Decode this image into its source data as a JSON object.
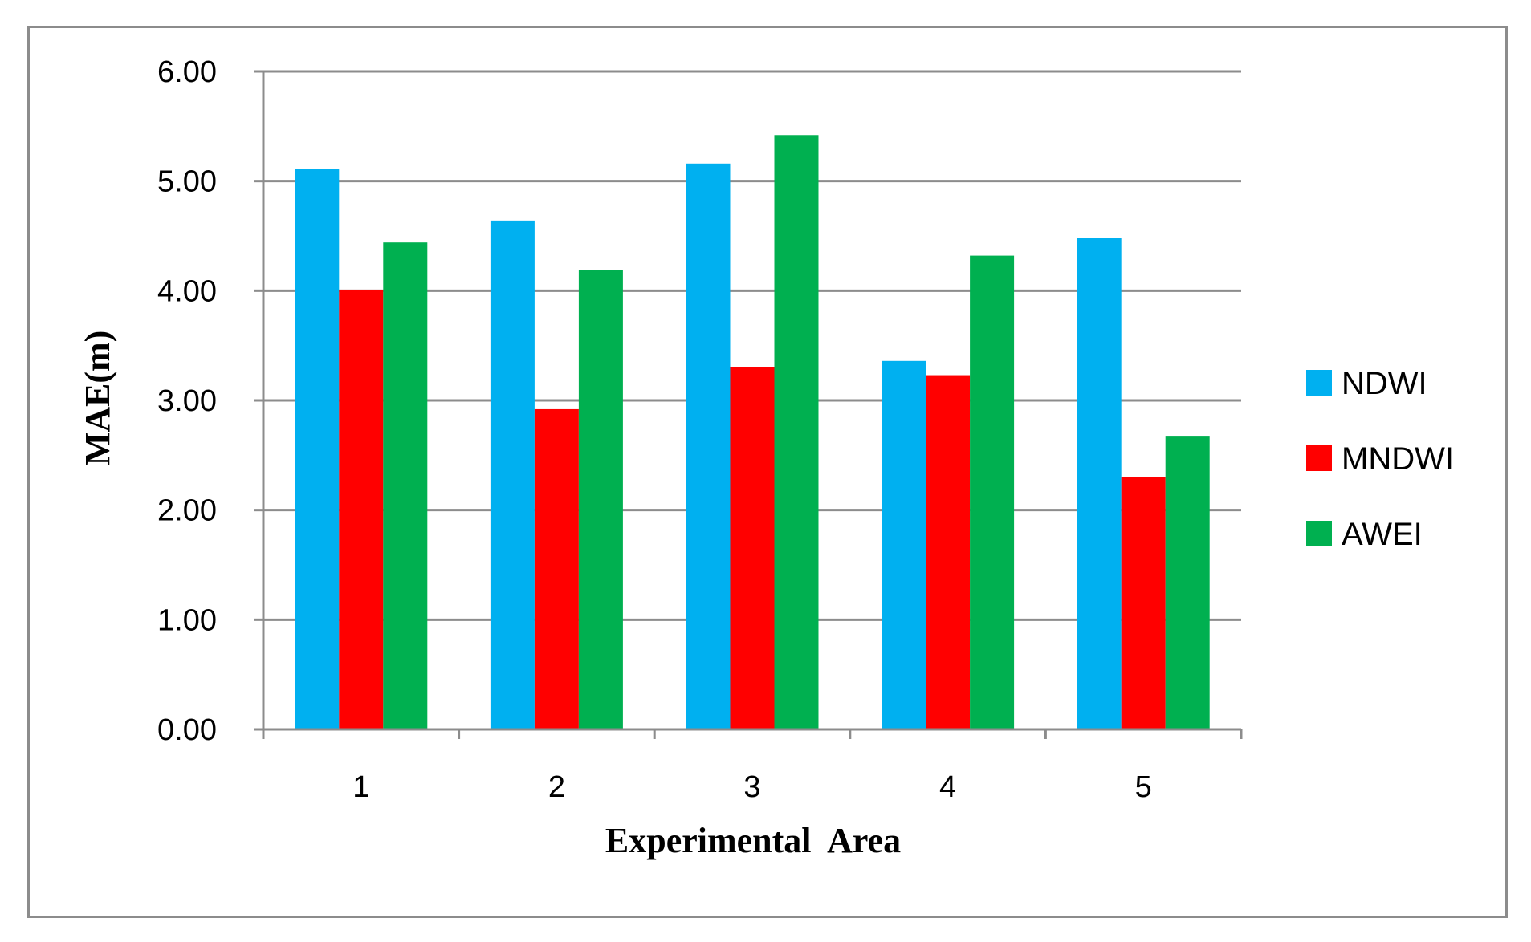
{
  "chart_data": {
    "type": "bar",
    "title": "",
    "xlabel": "Experimental  Area",
    "ylabel": "MAE(m)",
    "categories": [
      "1",
      "2",
      "3",
      "4",
      "5"
    ],
    "series": [
      {
        "name": "NDWI",
        "color": "#00b0f0",
        "values": [
          5.11,
          4.64,
          5.16,
          3.36,
          4.48
        ]
      },
      {
        "name": "MNDWI",
        "color": "#ff0000",
        "values": [
          4.01,
          2.92,
          3.3,
          3.23,
          2.3
        ]
      },
      {
        "name": "AWEI",
        "color": "#00b050",
        "values": [
          4.44,
          4.19,
          5.42,
          4.32,
          2.67
        ]
      }
    ],
    "ylim": [
      0,
      6
    ],
    "yticks": [
      0,
      1,
      2,
      3,
      4,
      5,
      6
    ],
    "ytick_labels": [
      "0.00",
      "1.00",
      "2.00",
      "3.00",
      "4.00",
      "5.00",
      "6.00"
    ],
    "grid": true,
    "legend_position": "right"
  }
}
